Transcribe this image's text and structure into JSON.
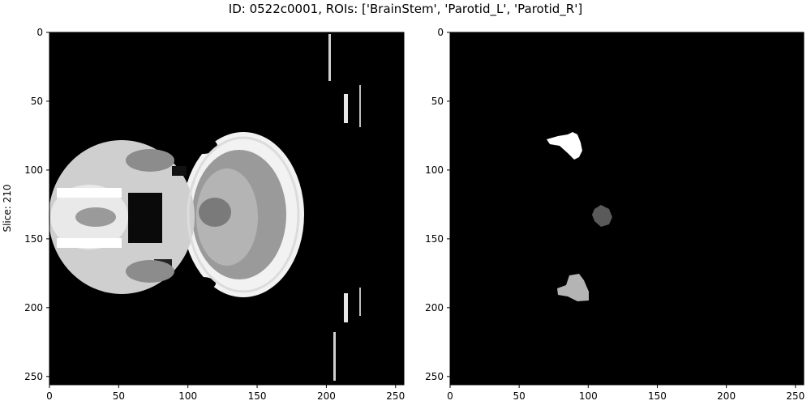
{
  "figure": {
    "title": "ID: 0522c0001, ROIs: ['BrainStem', 'Parotid_L', 'Parotid_R']",
    "ylabel": "Slice: 210"
  },
  "panels": [
    {
      "name": "ct-image-panel",
      "content": "grayscale axial CT scan of head",
      "xticks": [
        "0",
        "50",
        "100",
        "150",
        "200",
        "250"
      ],
      "yticks": [
        "0",
        "50",
        "100",
        "150",
        "200",
        "250"
      ]
    },
    {
      "name": "roi-mask-panel",
      "content": "segmentation mask with three ROI blobs",
      "xticks": [
        "0",
        "50",
        "100",
        "150",
        "200",
        "250"
      ],
      "yticks": [
        "0",
        "50",
        "100",
        "150",
        "200",
        "250"
      ]
    }
  ],
  "colors": {
    "background": "#000000",
    "roi_top": "#ffffff",
    "roi_middle": "#5a5a5a",
    "roi_bottom": "#b4b4b4"
  }
}
